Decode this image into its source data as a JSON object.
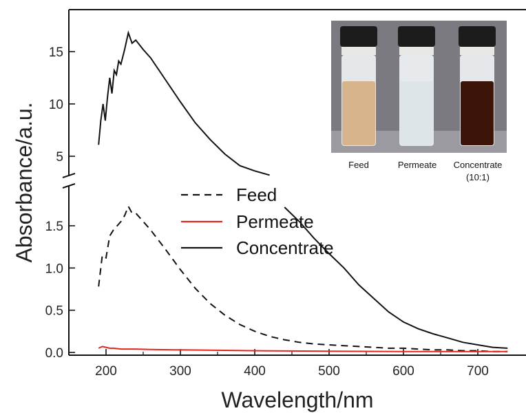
{
  "chart_data": {
    "type": "line",
    "xlabel": "Wavelength/nm",
    "ylabel": "Absorbance/a.u.",
    "xlim": [
      150,
      740
    ],
    "x_ticks": [
      "200",
      "300",
      "400",
      "500",
      "600",
      "700"
    ],
    "y_ticks_lower": [
      "0.0",
      "0.5",
      "1.0",
      "1.5"
    ],
    "y_ticks_upper": [
      "5",
      "10",
      "15"
    ],
    "y_break": {
      "lower_range": [
        0,
        1.8
      ],
      "upper_range": [
        3.3,
        17.5
      ]
    },
    "legend": {
      "placement": "center",
      "entries": [
        "Feed",
        "Permeate",
        "Concentrate"
      ]
    },
    "series": [
      {
        "name": "Feed",
        "style": "dashed",
        "color": "#111111",
        "x": [
          190,
          195,
          200,
          205,
          210,
          215,
          220,
          225,
          230,
          235,
          240,
          260,
          280,
          300,
          320,
          340,
          360,
          380,
          400,
          420,
          440,
          460,
          480,
          500,
          520,
          540,
          560,
          580,
          600,
          620,
          640,
          660,
          680,
          700,
          720,
          740
        ],
        "y": [
          0.78,
          1.15,
          1.12,
          1.38,
          1.45,
          1.5,
          1.55,
          1.62,
          1.73,
          1.65,
          1.65,
          1.45,
          1.22,
          0.98,
          0.76,
          0.58,
          0.44,
          0.33,
          0.25,
          0.19,
          0.15,
          0.12,
          0.1,
          0.09,
          0.08,
          0.07,
          0.06,
          0.05,
          0.05,
          0.04,
          0.03,
          0.03,
          0.02,
          0.02,
          0.01,
          0.01
        ]
      },
      {
        "name": "Permeate",
        "style": "solid",
        "color": "#e0261d",
        "x": [
          190,
          195,
          200,
          205,
          210,
          220,
          240,
          260,
          300,
          400,
          500,
          600,
          700,
          740
        ],
        "y": [
          0.05,
          0.07,
          0.06,
          0.05,
          0.05,
          0.04,
          0.04,
          0.035,
          0.03,
          0.02,
          0.015,
          0.01,
          0.01,
          0.01
        ]
      },
      {
        "name": "Concentrate",
        "style": "solid",
        "color": "#111111",
        "x": [
          190,
          193,
          196,
          199,
          202,
          205,
          208,
          211,
          214,
          217,
          220,
          225,
          230,
          235,
          240,
          250,
          260,
          280,
          300,
          320,
          340,
          360,
          380,
          400,
          420,
          440,
          460,
          480,
          500,
          520,
          540,
          560,
          580,
          600,
          620,
          640,
          660,
          680,
          700,
          720,
          740
        ],
        "y": [
          6.1,
          8.4,
          10.0,
          8.4,
          10.7,
          12.5,
          11.0,
          13.2,
          12.8,
          14.1,
          13.8,
          15.2,
          16.8,
          15.8,
          16.1,
          15.2,
          14.4,
          12.3,
          10.2,
          8.2,
          6.6,
          5.2,
          4.1,
          3.6,
          3.2,
          1.72,
          1.55,
          1.35,
          1.17,
          1.0,
          0.8,
          0.64,
          0.48,
          0.36,
          0.28,
          0.22,
          0.17,
          0.12,
          0.09,
          0.06,
          0.05
        ]
      }
    ]
  },
  "inset": {
    "labels": [
      "Feed",
      "Permeate",
      "Concentrate",
      "(10:1)"
    ],
    "vial_colors": [
      "#d6b48c",
      "#dde5e8",
      "#3a1508"
    ],
    "background": "#7a7a80"
  }
}
